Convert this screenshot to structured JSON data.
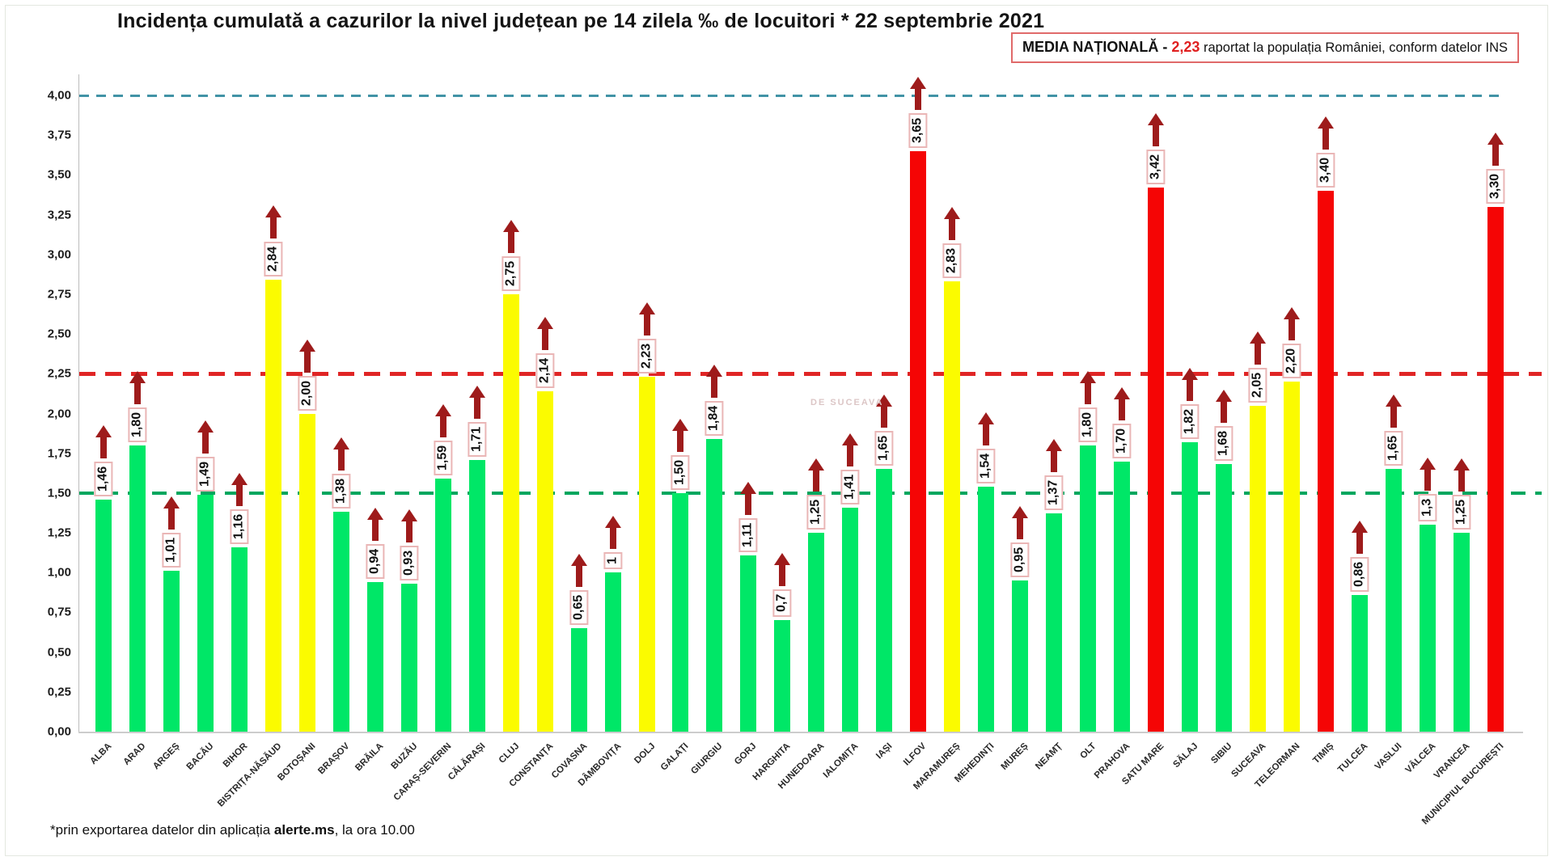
{
  "header": {
    "title": "Incidența cumulată a cazurilor la nivel județean pe 14 zilela ‰ de locuitori * 22 septembrie 2021"
  },
  "legend": {
    "label": "MEDIA NAȚIONALĂ",
    "separator": " - ",
    "value": "2,23",
    "suffix": " raportat la populația României, conform datelor INS"
  },
  "watermark": {
    "text": "DE SUCEAVA"
  },
  "footnote": {
    "prefix": "*prin exportarea datelor din aplicația ",
    "app": "alerte.ms",
    "suffix": ", la ora 10.00"
  },
  "colors": {
    "green": "#00E767",
    "yellow": "#FBFB00",
    "red": "#F50505",
    "arrow": "#9E1B1B",
    "label_box_border": "#EAB6B6",
    "ref_blue": "#4293A6",
    "ref_red": "#E02525",
    "ref_green": "#00A65E",
    "national_average_red": "#E02020"
  },
  "chart_data": {
    "type": "bar",
    "title": "Incidența cumulată a cazurilor la nivel județean pe 14 zilela ‰ de locuitori * 22 septembrie 2021",
    "xlabel": "",
    "ylabel": "",
    "ylim": [
      0,
      4.25
    ],
    "grid": false,
    "legend_position": "top-right",
    "national_average": 2.23,
    "yticks": [
      "4,00",
      "3,75",
      "3,50",
      "3,25",
      "3,00",
      "2,75",
      "2,50",
      "2,25",
      "2,00",
      "1,75",
      "1,50",
      "1,25",
      "1,00",
      "0,75",
      "0,50",
      "0,25",
      "0,00"
    ],
    "reference_lines": [
      {
        "value": 4.0,
        "color": "#4293A6",
        "style": "dashed"
      },
      {
        "value": 2.25,
        "color": "#E02525",
        "style": "dashed"
      },
      {
        "value": 1.5,
        "color": "#00A65E",
        "style": "dashed"
      }
    ],
    "bars": [
      {
        "county": "ALBA",
        "value": 1.46,
        "display": "1,46",
        "color": "#00E767"
      },
      {
        "county": "ARAD",
        "value": 1.8,
        "display": "1,80",
        "color": "#00E767"
      },
      {
        "county": "ARGEȘ",
        "value": 1.01,
        "display": "1,01",
        "color": "#00E767"
      },
      {
        "county": "BACĂU",
        "value": 1.49,
        "display": "1,49",
        "color": "#00E767"
      },
      {
        "county": "BIHOR",
        "value": 1.16,
        "display": "1,16",
        "color": "#00E767"
      },
      {
        "county": "BISTRIȚA-NĂSĂUD",
        "value": 2.84,
        "display": "2,84",
        "color": "#FBFB00"
      },
      {
        "county": "BOTOȘANI",
        "value": 2.0,
        "display": "2,00",
        "color": "#FBFB00"
      },
      {
        "county": "BRAȘOV",
        "value": 1.38,
        "display": "1,38",
        "color": "#00E767"
      },
      {
        "county": "BRĂILA",
        "value": 0.94,
        "display": "0,94",
        "color": "#00E767"
      },
      {
        "county": "BUZĂU",
        "value": 0.93,
        "display": "0,93",
        "color": "#00E767"
      },
      {
        "county": "CARAȘ-SEVERIN",
        "value": 1.59,
        "display": "1,59",
        "color": "#00E767"
      },
      {
        "county": "CĂLĂRAȘI",
        "value": 1.71,
        "display": "1,71",
        "color": "#00E767"
      },
      {
        "county": "CLUJ",
        "value": 2.75,
        "display": "2,75",
        "color": "#FBFB00"
      },
      {
        "county": "CONSTANȚA",
        "value": 2.14,
        "display": "2,14",
        "color": "#FBFB00"
      },
      {
        "county": "COVASNA",
        "value": 0.65,
        "display": "0,65",
        "color": "#00E767"
      },
      {
        "county": "DÂMBOVIȚA",
        "value": 1.0,
        "display": "1",
        "color": "#00E767"
      },
      {
        "county": "DOLJ",
        "value": 2.23,
        "display": "2,23",
        "color": "#FBFB00"
      },
      {
        "county": "GALAȚI",
        "value": 1.5,
        "display": "1,50",
        "color": "#00E767"
      },
      {
        "county": "GIURGIU",
        "value": 1.84,
        "display": "1,84",
        "color": "#00E767"
      },
      {
        "county": "GORJ",
        "value": 1.11,
        "display": "1,11",
        "color": "#00E767"
      },
      {
        "county": "HARGHITA",
        "value": 0.7,
        "display": "0,7",
        "color": "#00E767"
      },
      {
        "county": "HUNEDOARA",
        "value": 1.25,
        "display": "1,25",
        "color": "#00E767"
      },
      {
        "county": "IALOMIȚA",
        "value": 1.41,
        "display": "1,41",
        "color": "#00E767"
      },
      {
        "county": "IAȘI",
        "value": 1.65,
        "display": "1,65",
        "color": "#00E767"
      },
      {
        "county": "ILFOV",
        "value": 3.65,
        "display": "3,65",
        "color": "#F50505"
      },
      {
        "county": "MARAMUREȘ",
        "value": 2.83,
        "display": "2,83",
        "color": "#FBFB00"
      },
      {
        "county": "MEHEDINȚI",
        "value": 1.54,
        "display": "1,54",
        "color": "#00E767"
      },
      {
        "county": "MUREȘ",
        "value": 0.95,
        "display": "0,95",
        "color": "#00E767"
      },
      {
        "county": "NEAMȚ",
        "value": 1.37,
        "display": "1,37",
        "color": "#00E767"
      },
      {
        "county": "OLT",
        "value": 1.8,
        "display": "1,80",
        "color": "#00E767"
      },
      {
        "county": "PRAHOVA",
        "value": 1.7,
        "display": "1,70",
        "color": "#00E767"
      },
      {
        "county": "SATU MARE",
        "value": 3.42,
        "display": "3,42",
        "color": "#F50505"
      },
      {
        "county": "SĂLAJ",
        "value": 1.82,
        "display": "1,82",
        "color": "#00E767"
      },
      {
        "county": "SIBIU",
        "value": 1.68,
        "display": "1,68",
        "color": "#00E767"
      },
      {
        "county": "SUCEAVA",
        "value": 2.05,
        "display": "2,05",
        "color": "#FBFB00"
      },
      {
        "county": "TELEORMAN",
        "value": 2.2,
        "display": "2,20",
        "color": "#FBFB00"
      },
      {
        "county": "TIMIȘ",
        "value": 3.4,
        "display": "3,40",
        "color": "#F50505"
      },
      {
        "county": "TULCEA",
        "value": 0.86,
        "display": "0,86",
        "color": "#00E767"
      },
      {
        "county": "VASLUI",
        "value": 1.65,
        "display": "1,65",
        "color": "#00E767"
      },
      {
        "county": "VÂLCEA",
        "value": 1.3,
        "display": "1,3",
        "color": "#00E767"
      },
      {
        "county": "VRANCEA",
        "value": 1.25,
        "display": "1,25",
        "color": "#00E767"
      },
      {
        "county": "MUNICIPIUL BUCUREȘTI",
        "value": 3.3,
        "display": "3,30",
        "color": "#F50505"
      }
    ]
  }
}
